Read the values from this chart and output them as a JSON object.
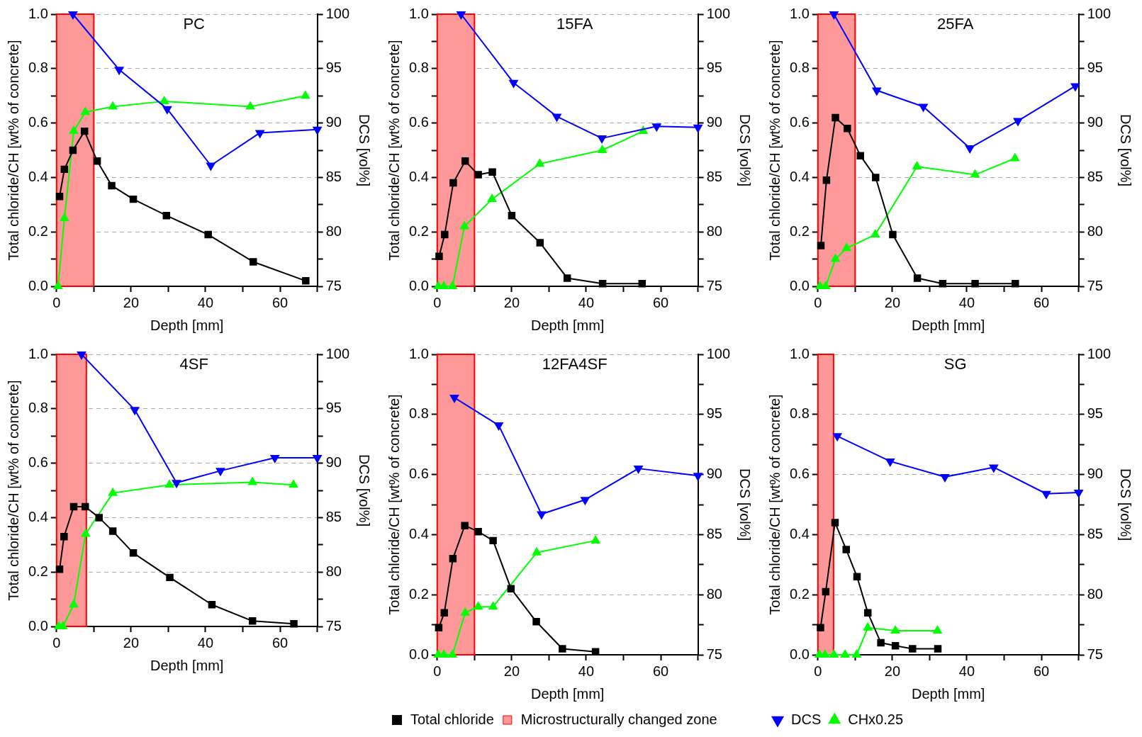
{
  "chart_data": [
    {
      "type": "line",
      "title": "PC",
      "xlabel": "Depth [mm]",
      "ylabel": "Total chloride/CH [wt% of concrete]",
      "y2label": "DCS [vol%]",
      "xlim": [
        0,
        70
      ],
      "xticks": [
        0,
        {
          "value": 10,
          "label": null
        },
        20,
        {
          "value": 30,
          "label": null
        },
        40,
        {
          "value": 50,
          "label": null
        },
        60,
        {
          "value": 70,
          "label": null
        }
      ],
      "ylim": [
        0,
        1
      ],
      "yticks": [
        {
          "value": 0,
          "label": "0.0"
        },
        {
          "value": 0.1,
          "label": null
        },
        {
          "value": 0.2,
          "label": "0.2"
        },
        {
          "value": 0.3,
          "label": null
        },
        {
          "value": 0.4,
          "label": "0.4"
        },
        {
          "value": 0.5,
          "label": null
        },
        {
          "value": 0.6,
          "label": "0.6"
        },
        {
          "value": 0.7,
          "label": null
        },
        {
          "value": 0.8,
          "label": "0.8"
        },
        {
          "value": 0.9,
          "label": null
        },
        {
          "value": 1,
          "label": "1.0"
        }
      ],
      "y2lim": [
        75,
        100
      ],
      "y2ticks": [
        75,
        {
          "value": 77.5,
          "label": null
        },
        80,
        {
          "value": 82.5,
          "label": null
        },
        85,
        {
          "value": 87.5,
          "label": null
        },
        90,
        {
          "value": 92.5,
          "label": null
        },
        95,
        {
          "value": 97.5,
          "label": null
        },
        100
      ],
      "grid": "y",
      "legend": false,
      "bands": [
        {
          "axis": "x",
          "from": 0,
          "to": 10,
          "color": "#ff9999"
        }
      ],
      "series": [
        {
          "color": "#000000",
          "marker": "square",
          "x": [
            0.8,
            2.1,
            4.4,
            7.5,
            10.9,
            14.8,
            20.6,
            29.5,
            40.7,
            52.8,
            66.9
          ],
          "values": [
            0.33,
            0.43,
            0.5,
            0.57,
            0.46,
            0.37,
            0.32,
            0.26,
            0.19,
            0.09,
            0.02
          ]
        },
        {
          "color": "#0000ff",
          "marker": "triangle-down",
          "axis": "y2",
          "x": [
            4.4,
            16.8,
            29.7,
            41.4,
            54.6,
            70
          ],
          "values": [
            100,
            94.9,
            91.3,
            86.1,
            89.1,
            89.4
          ]
        },
        {
          "color": "#00ff00",
          "marker": "triangle",
          "x": [
            0.4,
            2.1,
            4.6,
            7.7,
            15.1,
            28.9,
            52.0,
            66.8
          ],
          "values": [
            0,
            0.25,
            0.57,
            0.64,
            0.66,
            0.68,
            0.66,
            0.7
          ]
        }
      ]
    },
    {
      "type": "line",
      "title": "15FA",
      "xlabel": "Depth [mm]",
      "ylabel": "Total chloride/CH [wt% of concrete]",
      "y2label": "DCS [vol%]",
      "xlim": [
        0,
        70
      ],
      "xticks": [
        0,
        {
          "value": 10,
          "label": null
        },
        20,
        {
          "value": 30,
          "label": null
        },
        40,
        {
          "value": 50,
          "label": null
        },
        60,
        {
          "value": 70,
          "label": null
        }
      ],
      "ylim": [
        0,
        1
      ],
      "yticks": [
        {
          "value": 0,
          "label": "0.0"
        },
        {
          "value": 0.1,
          "label": null
        },
        {
          "value": 0.2,
          "label": "0.2"
        },
        {
          "value": 0.3,
          "label": null
        },
        {
          "value": 0.4,
          "label": "0.4"
        },
        {
          "value": 0.5,
          "label": null
        },
        {
          "value": 0.6,
          "label": "0.6"
        },
        {
          "value": 0.7,
          "label": null
        },
        {
          "value": 0.8,
          "label": "0.8"
        },
        {
          "value": 0.9,
          "label": null
        },
        {
          "value": 1,
          "label": "1.0"
        }
      ],
      "y2lim": [
        75,
        100
      ],
      "y2ticks": [
        75,
        {
          "value": 77.5,
          "label": null
        },
        80,
        {
          "value": 82.5,
          "label": null
        },
        85,
        {
          "value": 87.5,
          "label": null
        },
        90,
        {
          "value": 92.5,
          "label": null
        },
        95,
        {
          "value": 97.5,
          "label": null
        },
        100
      ],
      "grid": "y",
      "legend": false,
      "bands": [
        {
          "axis": "x",
          "from": 0,
          "to": 10,
          "color": "#ff9999"
        }
      ],
      "series": [
        {
          "color": "#000000",
          "marker": "square",
          "x": [
            0.5,
            2.0,
            4.3,
            7.5,
            11.0,
            14.8,
            20.0,
            27.6,
            34.9,
            44.4,
            55.0
          ],
          "values": [
            0.11,
            0.19,
            0.38,
            0.46,
            0.41,
            0.42,
            0.26,
            0.16,
            0.03,
            0.01,
            0.01
          ]
        },
        {
          "color": "#0000ff",
          "marker": "triangle-down",
          "axis": "y2",
          "x": [
            6.4,
            20.5,
            32.1,
            44.2,
            58.9,
            70
          ],
          "values": [
            100,
            93.7,
            90.6,
            88.6,
            89.7,
            89.6
          ]
        },
        {
          "color": "#00ff00",
          "marker": "triangle",
          "x": [
            0.3,
            1.8,
            4.1,
            7.3,
            14.7,
            27.5,
            44.3,
            55.3
          ],
          "values": [
            0,
            0,
            0,
            0.22,
            0.32,
            0.45,
            0.5,
            0.57
          ]
        }
      ]
    },
    {
      "type": "line",
      "title": "25FA",
      "xlabel": "Depth [mm]",
      "ylabel": "Total chloride/CH [wt% of concrete]",
      "y2label": "DCS [vol%]",
      "xlim": [
        0,
        70
      ],
      "xticks": [
        0,
        {
          "value": 10,
          "label": null
        },
        20,
        {
          "value": 30,
          "label": null
        },
        40,
        {
          "value": 50,
          "label": null
        },
        60,
        {
          "value": 70,
          "label": null
        }
      ],
      "ylim": [
        0,
        1
      ],
      "yticks": [
        {
          "value": 0,
          "label": "0.0"
        },
        {
          "value": 0.1,
          "label": null
        },
        {
          "value": 0.2,
          "label": "0.2"
        },
        {
          "value": 0.3,
          "label": null
        },
        {
          "value": 0.4,
          "label": "0.4"
        },
        {
          "value": 0.5,
          "label": null
        },
        {
          "value": 0.6,
          "label": "0.6"
        },
        {
          "value": 0.7,
          "label": null
        },
        {
          "value": 0.8,
          "label": "0.8"
        },
        {
          "value": 0.9,
          "label": null
        },
        {
          "value": 1,
          "label": "1.0"
        }
      ],
      "y2lim": [
        75,
        100
      ],
      "y2ticks": [
        75,
        {
          "value": 77.5,
          "label": null
        },
        80,
        {
          "value": 82.5,
          "label": null
        },
        85,
        {
          "value": 87.5,
          "label": null
        },
        90,
        {
          "value": 92.5,
          "label": null
        },
        95,
        {
          "value": 97.5,
          "label": null
        },
        100
      ],
      "grid": "y",
      "legend": false,
      "bands": [
        {
          "axis": "x",
          "from": 0,
          "to": 10,
          "color": "#ff9999"
        }
      ],
      "series": [
        {
          "color": "#000000",
          "marker": "square",
          "x": [
            0.8,
            2.3,
            4.7,
            7.9,
            11.4,
            15.5,
            20.1,
            26.7,
            33.5,
            42.2,
            53.0
          ],
          "values": [
            0.15,
            0.39,
            0.62,
            0.58,
            0.48,
            0.4,
            0.19,
            0.03,
            0.01,
            0.01,
            0.01
          ]
        },
        {
          "color": "#0000ff",
          "marker": "triangle-down",
          "axis": "y2",
          "x": [
            4.3,
            15.8,
            28.3,
            40.8,
            53.7,
            69.1
          ],
          "values": [
            100,
            93.0,
            91.5,
            87.7,
            90.2,
            93.4
          ]
        },
        {
          "color": "#00ff00",
          "marker": "triangle",
          "x": [
            0.6,
            2.1,
            4.7,
            7.7,
            15.4,
            26.6,
            42.2,
            52.9
          ],
          "values": [
            0,
            0,
            0.1,
            0.14,
            0.19,
            0.44,
            0.41,
            0.47
          ]
        }
      ]
    },
    {
      "type": "line",
      "title": "4SF",
      "xlabel": "Depth [mm]",
      "ylabel": "Total chloride/CH [wt% of concrete]",
      "y2label": "DCS [vol%]",
      "xlim": [
        0,
        70
      ],
      "xticks": [
        0,
        {
          "value": 10,
          "label": null
        },
        20,
        {
          "value": 30,
          "label": null
        },
        40,
        {
          "value": 50,
          "label": null
        },
        60,
        {
          "value": 70,
          "label": null
        }
      ],
      "ylim": [
        0,
        1
      ],
      "yticks": [
        {
          "value": 0,
          "label": "0.0"
        },
        {
          "value": 0.1,
          "label": null
        },
        {
          "value": 0.2,
          "label": "0.2"
        },
        {
          "value": 0.3,
          "label": null
        },
        {
          "value": 0.4,
          "label": "0.4"
        },
        {
          "value": 0.5,
          "label": null
        },
        {
          "value": 0.6,
          "label": "0.6"
        },
        {
          "value": 0.7,
          "label": null
        },
        {
          "value": 0.8,
          "label": "0.8"
        },
        {
          "value": 0.9,
          "label": null
        },
        {
          "value": 1,
          "label": "1.0"
        }
      ],
      "y2lim": [
        75,
        100
      ],
      "y2ticks": [
        75,
        {
          "value": 77.5,
          "label": null
        },
        80,
        {
          "value": 82.5,
          "label": null
        },
        85,
        {
          "value": 87.5,
          "label": null
        },
        90,
        {
          "value": 92.5,
          "label": null
        },
        95,
        {
          "value": 97.5,
          "label": null
        },
        100
      ],
      "grid": "y",
      "legend": false,
      "bands": [
        {
          "axis": "x",
          "from": 0,
          "to": 8,
          "color": "#ff9999"
        }
      ],
      "series": [
        {
          "color": "#000000",
          "marker": "square",
          "x": [
            0.8,
            2.0,
            4.6,
            7.7,
            11.4,
            15.1,
            20.6,
            30.4,
            41.7,
            52.6,
            63.7
          ],
          "values": [
            0.21,
            0.33,
            0.44,
            0.44,
            0.4,
            0.35,
            0.27,
            0.18,
            0.08,
            0.02,
            0.01
          ]
        },
        {
          "color": "#0000ff",
          "marker": "triangle-down",
          "axis": "y2",
          "x": [
            6.7,
            21.0,
            32.2,
            44.0,
            58.6,
            70
          ],
          "values": [
            100,
            94.9,
            88.2,
            89.3,
            90.5,
            90.5
          ]
        },
        {
          "color": "#00ff00",
          "marker": "triangle",
          "x": [
            0.6,
            1.7,
            4.6,
            7.8,
            15.1,
            30.3,
            52.6,
            63.6
          ],
          "values": [
            0,
            0,
            0.08,
            0.34,
            0.49,
            0.52,
            0.53,
            0.52
          ]
        }
      ]
    },
    {
      "type": "line",
      "title": "12FA4SF",
      "xlabel": "Depth [mm]",
      "ylabel": "Total chloride/CH [wt% of concrete]",
      "y2label": "DCS [vol%]",
      "xlim": [
        0,
        70
      ],
      "xticks": [
        0,
        {
          "value": 10,
          "label": null
        },
        20,
        {
          "value": 30,
          "label": null
        },
        40,
        {
          "value": 50,
          "label": null
        },
        60,
        {
          "value": 70,
          "label": null
        }
      ],
      "ylim": [
        0,
        1
      ],
      "yticks": [
        {
          "value": 0,
          "label": "0.0"
        },
        {
          "value": 0.1,
          "label": null
        },
        {
          "value": 0.2,
          "label": "0.2"
        },
        {
          "value": 0.3,
          "label": null
        },
        {
          "value": 0.4,
          "label": "0.4"
        },
        {
          "value": 0.5,
          "label": null
        },
        {
          "value": 0.6,
          "label": "0.6"
        },
        {
          "value": 0.7,
          "label": null
        },
        {
          "value": 0.8,
          "label": "0.8"
        },
        {
          "value": 0.9,
          "label": null
        },
        {
          "value": 1,
          "label": "1.0"
        }
      ],
      "y2lim": [
        75,
        100
      ],
      "y2ticks": [
        75,
        {
          "value": 77.5,
          "label": null
        },
        80,
        {
          "value": 82.5,
          "label": null
        },
        85,
        {
          "value": 87.5,
          "label": null
        },
        90,
        {
          "value": 92.5,
          "label": null
        },
        95,
        {
          "value": 97.5,
          "label": null
        },
        100
      ],
      "grid": "y",
      "legend": "bottom",
      "bands": [
        {
          "axis": "x",
          "from": 0,
          "to": 10,
          "color": "#ff9999",
          "label": "Microstructurally changed zone"
        }
      ],
      "series": [
        {
          "name": "Total chloride",
          "color": "#000000",
          "marker": "square",
          "x": [
            0.4,
            1.9,
            4.2,
            7.4,
            11.0,
            15.0,
            19.8,
            26.6,
            33.6,
            42.5
          ],
          "values": [
            0.09,
            0.14,
            0.32,
            0.43,
            0.41,
            0.38,
            0.22,
            0.11,
            0.02,
            0.01
          ]
        },
        {
          "color": "#0000ff",
          "marker": "triangle-down",
          "axis": "y2",
          "x": [
            4.6,
            16.5,
            28.0,
            39.7,
            54.0,
            70
          ],
          "values": [
            96.4,
            94.1,
            86.7,
            87.9,
            90.5,
            89.9
          ]
        },
        {
          "color": "#00ff00",
          "marker": "triangle",
          "x": [
            0.3,
            1.8,
            4.1,
            7.5,
            11.0,
            15.0,
            26.7,
            42.5
          ],
          "values": [
            0,
            0,
            0,
            0.14,
            0.16,
            0.16,
            0.34,
            0.38
          ]
        }
      ]
    },
    {
      "type": "line",
      "title": "SG",
      "xlabel": "Depth [mm]",
      "ylabel": "Total chloride/CH [wt% of concrete]",
      "y2label": "DCS [vol%]",
      "xlim": [
        0,
        70
      ],
      "xticks": [
        0,
        {
          "value": 10,
          "label": null
        },
        20,
        {
          "value": 30,
          "label": null
        },
        40,
        {
          "value": 50,
          "label": null
        },
        60,
        {
          "value": 70,
          "label": null
        }
      ],
      "ylim": [
        0,
        1
      ],
      "yticks": [
        {
          "value": 0,
          "label": "0.0"
        },
        {
          "value": 0.1,
          "label": null
        },
        {
          "value": 0.2,
          "label": "0.2"
        },
        {
          "value": 0.3,
          "label": null
        },
        {
          "value": 0.4,
          "label": "0.4"
        },
        {
          "value": 0.5,
          "label": null
        },
        {
          "value": 0.6,
          "label": "0.6"
        },
        {
          "value": 0.7,
          "label": null
        },
        {
          "value": 0.8,
          "label": "0.8"
        },
        {
          "value": 0.9,
          "label": null
        },
        {
          "value": 1,
          "label": "1.0"
        }
      ],
      "y2lim": [
        75,
        100
      ],
      "y2ticks": [
        75,
        {
          "value": 77.5,
          "label": null
        },
        80,
        {
          "value": 82.5,
          "label": null
        },
        85,
        {
          "value": 87.5,
          "label": null
        },
        90,
        {
          "value": 92.5,
          "label": null
        },
        95,
        {
          "value": 97.5,
          "label": null
        },
        100
      ],
      "grid": "y",
      "legend": "bottom",
      "bands": [
        {
          "axis": "x",
          "from": 0,
          "to": 4.2,
          "color": "#ff9999"
        }
      ],
      "series": [
        {
          "color": "#000000",
          "marker": "square",
          "x": [
            0.7,
            2.1,
            4.6,
            7.6,
            10.5,
            13.4,
            16.9,
            20.8,
            25.4,
            32.2
          ],
          "values": [
            0.09,
            0.21,
            0.44,
            0.35,
            0.26,
            0.14,
            0.04,
            0.03,
            0.02,
            0.02
          ]
        },
        {
          "name": "DCS",
          "color": "#0000ff",
          "marker": "triangle-down",
          "axis": "y2",
          "x": [
            5.2,
            19.4,
            34.1,
            47.2,
            61.3,
            70
          ],
          "values": [
            93.2,
            91.1,
            89.8,
            90.6,
            88.4,
            88.5
          ]
        },
        {
          "name": "CHx0.25",
          "color": "#00ff00",
          "marker": "triangle",
          "x": [
            0.4,
            1.9,
            4.3,
            7.3,
            10.4,
            13.4,
            20.8,
            32.1
          ],
          "values": [
            0,
            0,
            0,
            0,
            0,
            0.09,
            0.08,
            0.08
          ]
        }
      ]
    }
  ]
}
